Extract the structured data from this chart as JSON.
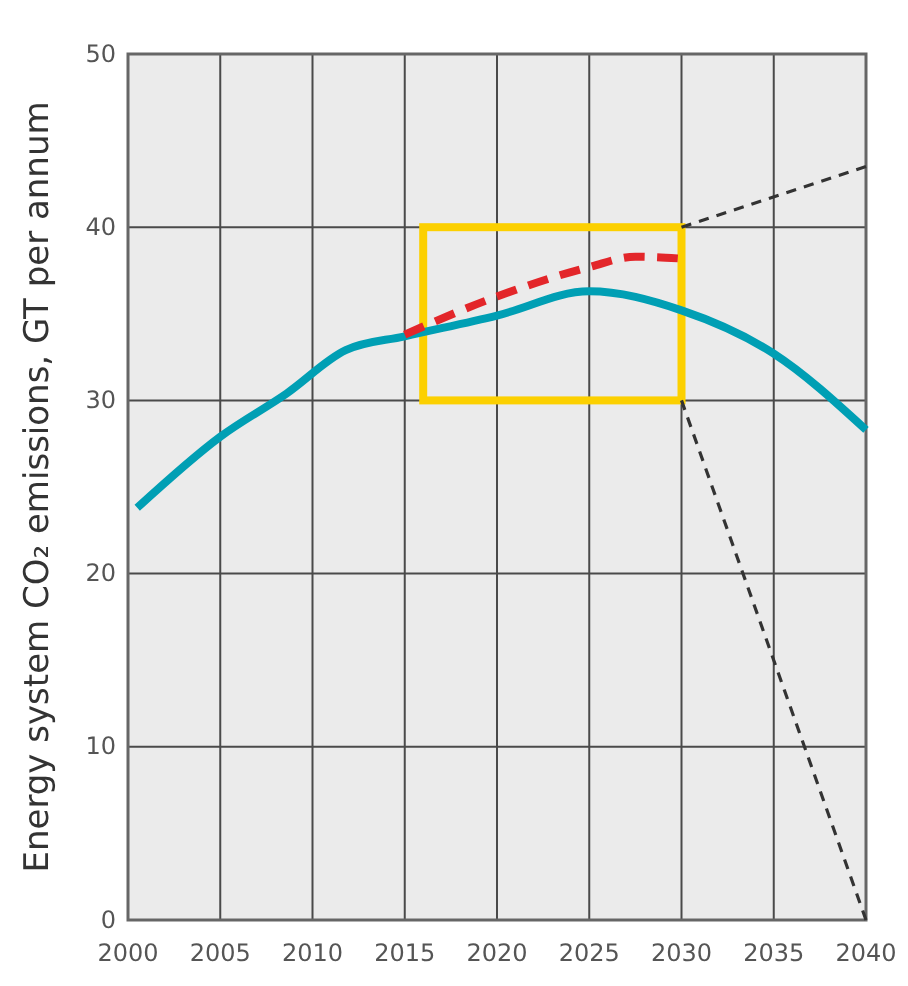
{
  "chart_data": {
    "type": "line",
    "ylabel": "Energy system CO₂ emissions, GT per annum",
    "xlim": [
      2000,
      2040
    ],
    "xticks": [
      2000,
      2005,
      2010,
      2015,
      2020,
      2025,
      2030,
      2035,
      2040
    ],
    "ylim": [
      0,
      50
    ],
    "yticks": [
      0,
      10,
      20,
      30,
      40,
      50
    ],
    "grid": true,
    "marker": "none",
    "series": [
      {
        "color": "#009fb4",
        "line_style": "solid",
        "x": [
          2000.5,
          2005,
          2008.6,
          2011.8,
          2015,
          2020,
          2025,
          2030,
          2035,
          2040
        ],
        "values": [
          23.8,
          27.9,
          30.4,
          32.9,
          33.7,
          34.9,
          36.3,
          35.2,
          32.7,
          28.3
        ]
      },
      {
        "color": "#e3262a",
        "line_style": "dashed",
        "x": [
          2015,
          2020,
          2025,
          2027.5,
          2029.8
        ],
        "values": [
          33.8,
          36.0,
          37.7,
          38.3,
          38.2
        ]
      },
      {
        "color": "#333333",
        "line_style": "dashed",
        "x": [
          2030,
          2040
        ],
        "values": [
          40,
          43.5
        ]
      },
      {
        "color": "#333333",
        "line_style": "dashed",
        "x": [
          2030,
          2040
        ],
        "values": [
          30,
          0
        ]
      }
    ]
  }
}
